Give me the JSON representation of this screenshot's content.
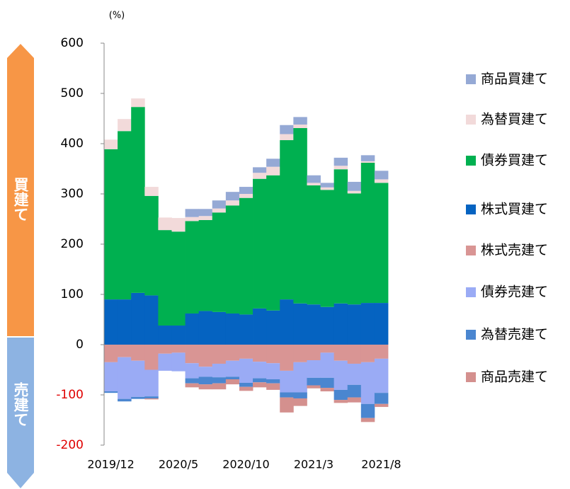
{
  "chart_data": {
    "type": "stacked_bar",
    "y_unit": "(%)",
    "annotations": [
      "買建て",
      "売建て"
    ],
    "categories": [
      "2019/12",
      null,
      null,
      null,
      null,
      "2020/5",
      null,
      null,
      null,
      null,
      "2020/10",
      null,
      null,
      null,
      null,
      "2021/3",
      null,
      null,
      null,
      null,
      "2021/8"
    ],
    "series": [
      {
        "name": "商品買建て",
        "color": "#95a9d5",
        "values": [
          0,
          0,
          0,
          0,
          0,
          0,
          16,
          14,
          16,
          17,
          14,
          11,
          16,
          18,
          15,
          15,
          9,
          16,
          18,
          12,
          17
        ]
      },
      {
        "name": "為替買建て",
        "color": "#f2dada",
        "values": [
          19,
          24,
          17,
          18,
          25,
          27,
          8,
          8,
          8,
          10,
          8,
          12,
          17,
          12,
          7,
          5,
          5,
          7,
          5,
          3,
          7
        ]
      },
      {
        "name": "債券買建て",
        "color": "#00b050",
        "values": [
          299,
          335,
          370,
          198,
          190,
          187,
          184,
          181,
          198,
          215,
          232,
          258,
          269,
          317,
          349,
          237,
          233,
          267,
          221,
          279,
          239
        ]
      },
      {
        "name": "株式買建て",
        "color": "#0563c1",
        "values": [
          90,
          90,
          103,
          98,
          38,
          38,
          62,
          67,
          65,
          62,
          60,
          72,
          68,
          90,
          82,
          80,
          75,
          82,
          80,
          83,
          83
        ]
      },
      {
        "name": "株式売建て",
        "color": "#d99594",
        "values": [
          -35,
          -25,
          -32,
          -50,
          -18,
          -16,
          -37,
          -44,
          -38,
          -32,
          -28,
          -34,
          -37,
          -52,
          -35,
          -31,
          -16,
          -32,
          -38,
          -35,
          -28
        ]
      },
      {
        "name": "債券売建て",
        "color": "#9aabf5",
        "values": [
          -58,
          -83,
          -72,
          -53,
          -34,
          -37,
          -30,
          -20,
          -27,
          -32,
          -48,
          -33,
          -32,
          -43,
          -60,
          -35,
          -50,
          -58,
          -42,
          -83,
          -68
        ]
      },
      {
        "name": "為替売建て",
        "color": "#4a86d0",
        "values": [
          -3,
          -5,
          -4,
          -4,
          0,
          0,
          -10,
          -15,
          -12,
          -5,
          -8,
          -8,
          -8,
          -10,
          -12,
          -15,
          -20,
          -20,
          -25,
          -28,
          -22
        ]
      },
      {
        "name": "商品売建て",
        "color": "#d4908e",
        "values": [
          0,
          0,
          0,
          -2,
          0,
          0,
          -8,
          -10,
          -12,
          -10,
          -8,
          -10,
          -13,
          -30,
          -15,
          -6,
          -7,
          -6,
          -10,
          -8,
          -6
        ]
      }
    ],
    "ylim": [
      -200,
      600
    ],
    "yticks": [
      -200,
      -100,
      0,
      100,
      200,
      300,
      400,
      500,
      600
    ]
  }
}
